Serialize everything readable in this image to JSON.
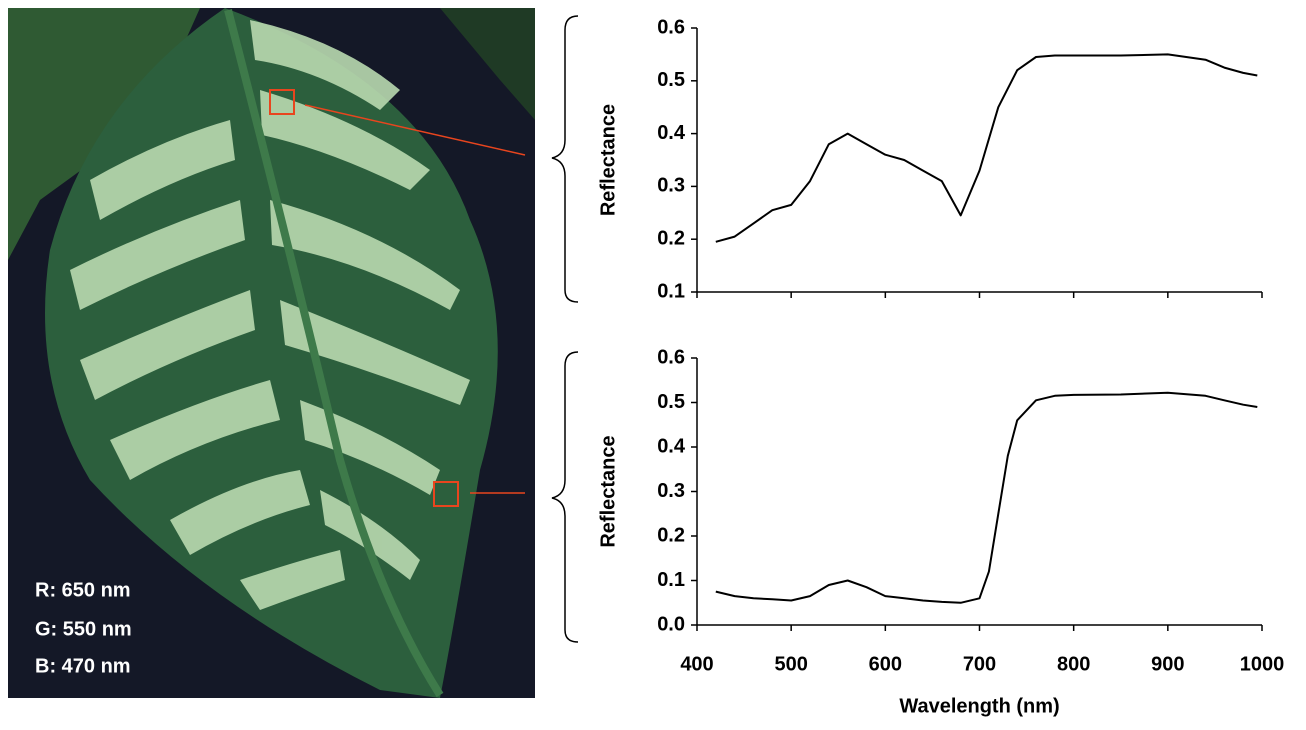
{
  "image_labels": [
    "R: 650 nm",
    "G: 550 nm",
    "B: 470 nm"
  ],
  "chart_data": [
    {
      "type": "line",
      "ylabel": "Reflectance",
      "x": [
        420,
        440,
        460,
        480,
        500,
        520,
        540,
        560,
        580,
        600,
        620,
        640,
        660,
        680,
        700,
        720,
        740,
        760,
        780,
        800,
        850,
        900,
        940,
        960,
        980,
        995
      ],
      "series": [
        {
          "color": "#000000",
          "values": [
            0.195,
            0.205,
            0.23,
            0.255,
            0.265,
            0.31,
            0.38,
            0.4,
            0.38,
            0.36,
            0.35,
            0.33,
            0.31,
            0.245,
            0.33,
            0.45,
            0.52,
            0.545,
            0.548,
            0.548,
            0.548,
            0.55,
            0.54,
            0.525,
            0.515,
            0.51
          ]
        }
      ],
      "xlim": [
        400,
        1000
      ],
      "xticks": [
        400,
        500,
        600,
        700,
        800,
        900,
        1000
      ],
      "ylim": [
        0.1,
        0.6
      ],
      "yticks": [
        0.1,
        0.2,
        0.3,
        0.4,
        0.5,
        0.6
      ]
    },
    {
      "type": "line",
      "ylabel": "Reflectance",
      "xlabel": "Wavelength (nm)",
      "x": [
        420,
        440,
        460,
        480,
        500,
        520,
        540,
        560,
        580,
        600,
        620,
        640,
        660,
        680,
        700,
        710,
        720,
        730,
        740,
        760,
        780,
        800,
        850,
        900,
        940,
        960,
        980,
        995
      ],
      "series": [
        {
          "color": "#000000",
          "values": [
            0.075,
            0.065,
            0.06,
            0.058,
            0.055,
            0.065,
            0.09,
            0.1,
            0.085,
            0.065,
            0.06,
            0.055,
            0.052,
            0.05,
            0.06,
            0.12,
            0.25,
            0.38,
            0.46,
            0.505,
            0.515,
            0.517,
            0.518,
            0.522,
            0.515,
            0.505,
            0.495,
            0.49
          ]
        }
      ],
      "xlim": [
        400,
        1000
      ],
      "xticks": [
        400,
        500,
        600,
        700,
        800,
        900,
        1000
      ],
      "show_xtick_labels": true,
      "ylim": [
        0,
        0.6
      ],
      "yticks": [
        {
          "value": 0,
          "label": "0.0"
        },
        0.1,
        0.2,
        0.3,
        0.4,
        0.5,
        0.6
      ]
    }
  ]
}
